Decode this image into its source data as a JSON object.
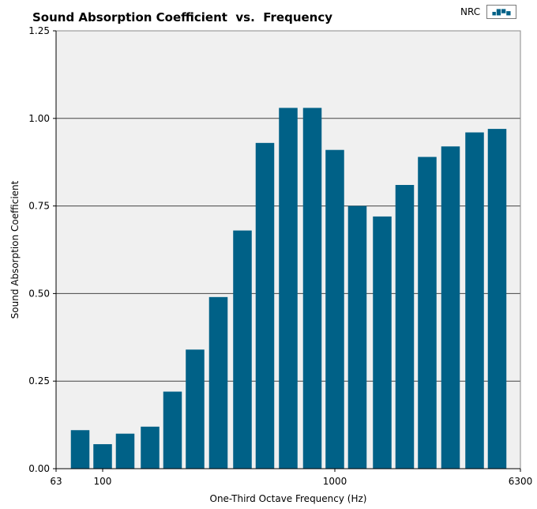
{
  "chart_data": {
    "type": "bar",
    "title": "Sound Absorption Coefficient  vs.  Frequency",
    "xlabel": "One-Third Octave Frequency (Hz)",
    "ylabel": "Sound Absorption Coefficient",
    "x_scale": "log",
    "xlim": [
      63,
      6300
    ],
    "ylim": [
      0,
      1.25
    ],
    "x_ticks": [
      63,
      100,
      1000,
      6300
    ],
    "x_tick_labels": [
      "63",
      "100",
      "1000",
      "6300"
    ],
    "y_ticks": [
      0,
      0.25,
      0.5,
      0.75,
      1.0,
      1.25
    ],
    "y_tick_labels": [
      "0.00",
      "0.25",
      "0.50",
      "0.75",
      "1.00",
      "1.25"
    ],
    "grid": true,
    "legend_position": "top-right",
    "categories": [
      "80",
      "100",
      "125",
      "160",
      "200",
      "250",
      "315",
      "400",
      "500",
      "630",
      "800",
      "1000",
      "1250",
      "1600",
      "2000",
      "2500",
      "3150",
      "4000",
      "5000"
    ],
    "series": [
      {
        "name": "NRC",
        "color": "#006187",
        "values": [
          0.11,
          0.07,
          0.1,
          0.12,
          0.22,
          0.34,
          0.49,
          0.68,
          0.93,
          1.03,
          1.03,
          0.91,
          0.75,
          0.72,
          0.81,
          0.89,
          0.92,
          0.96,
          0.97
        ]
      }
    ]
  },
  "colors": {
    "bar": "#006187",
    "plot_background": "#f0f0f0",
    "gridline": "#444444"
  }
}
